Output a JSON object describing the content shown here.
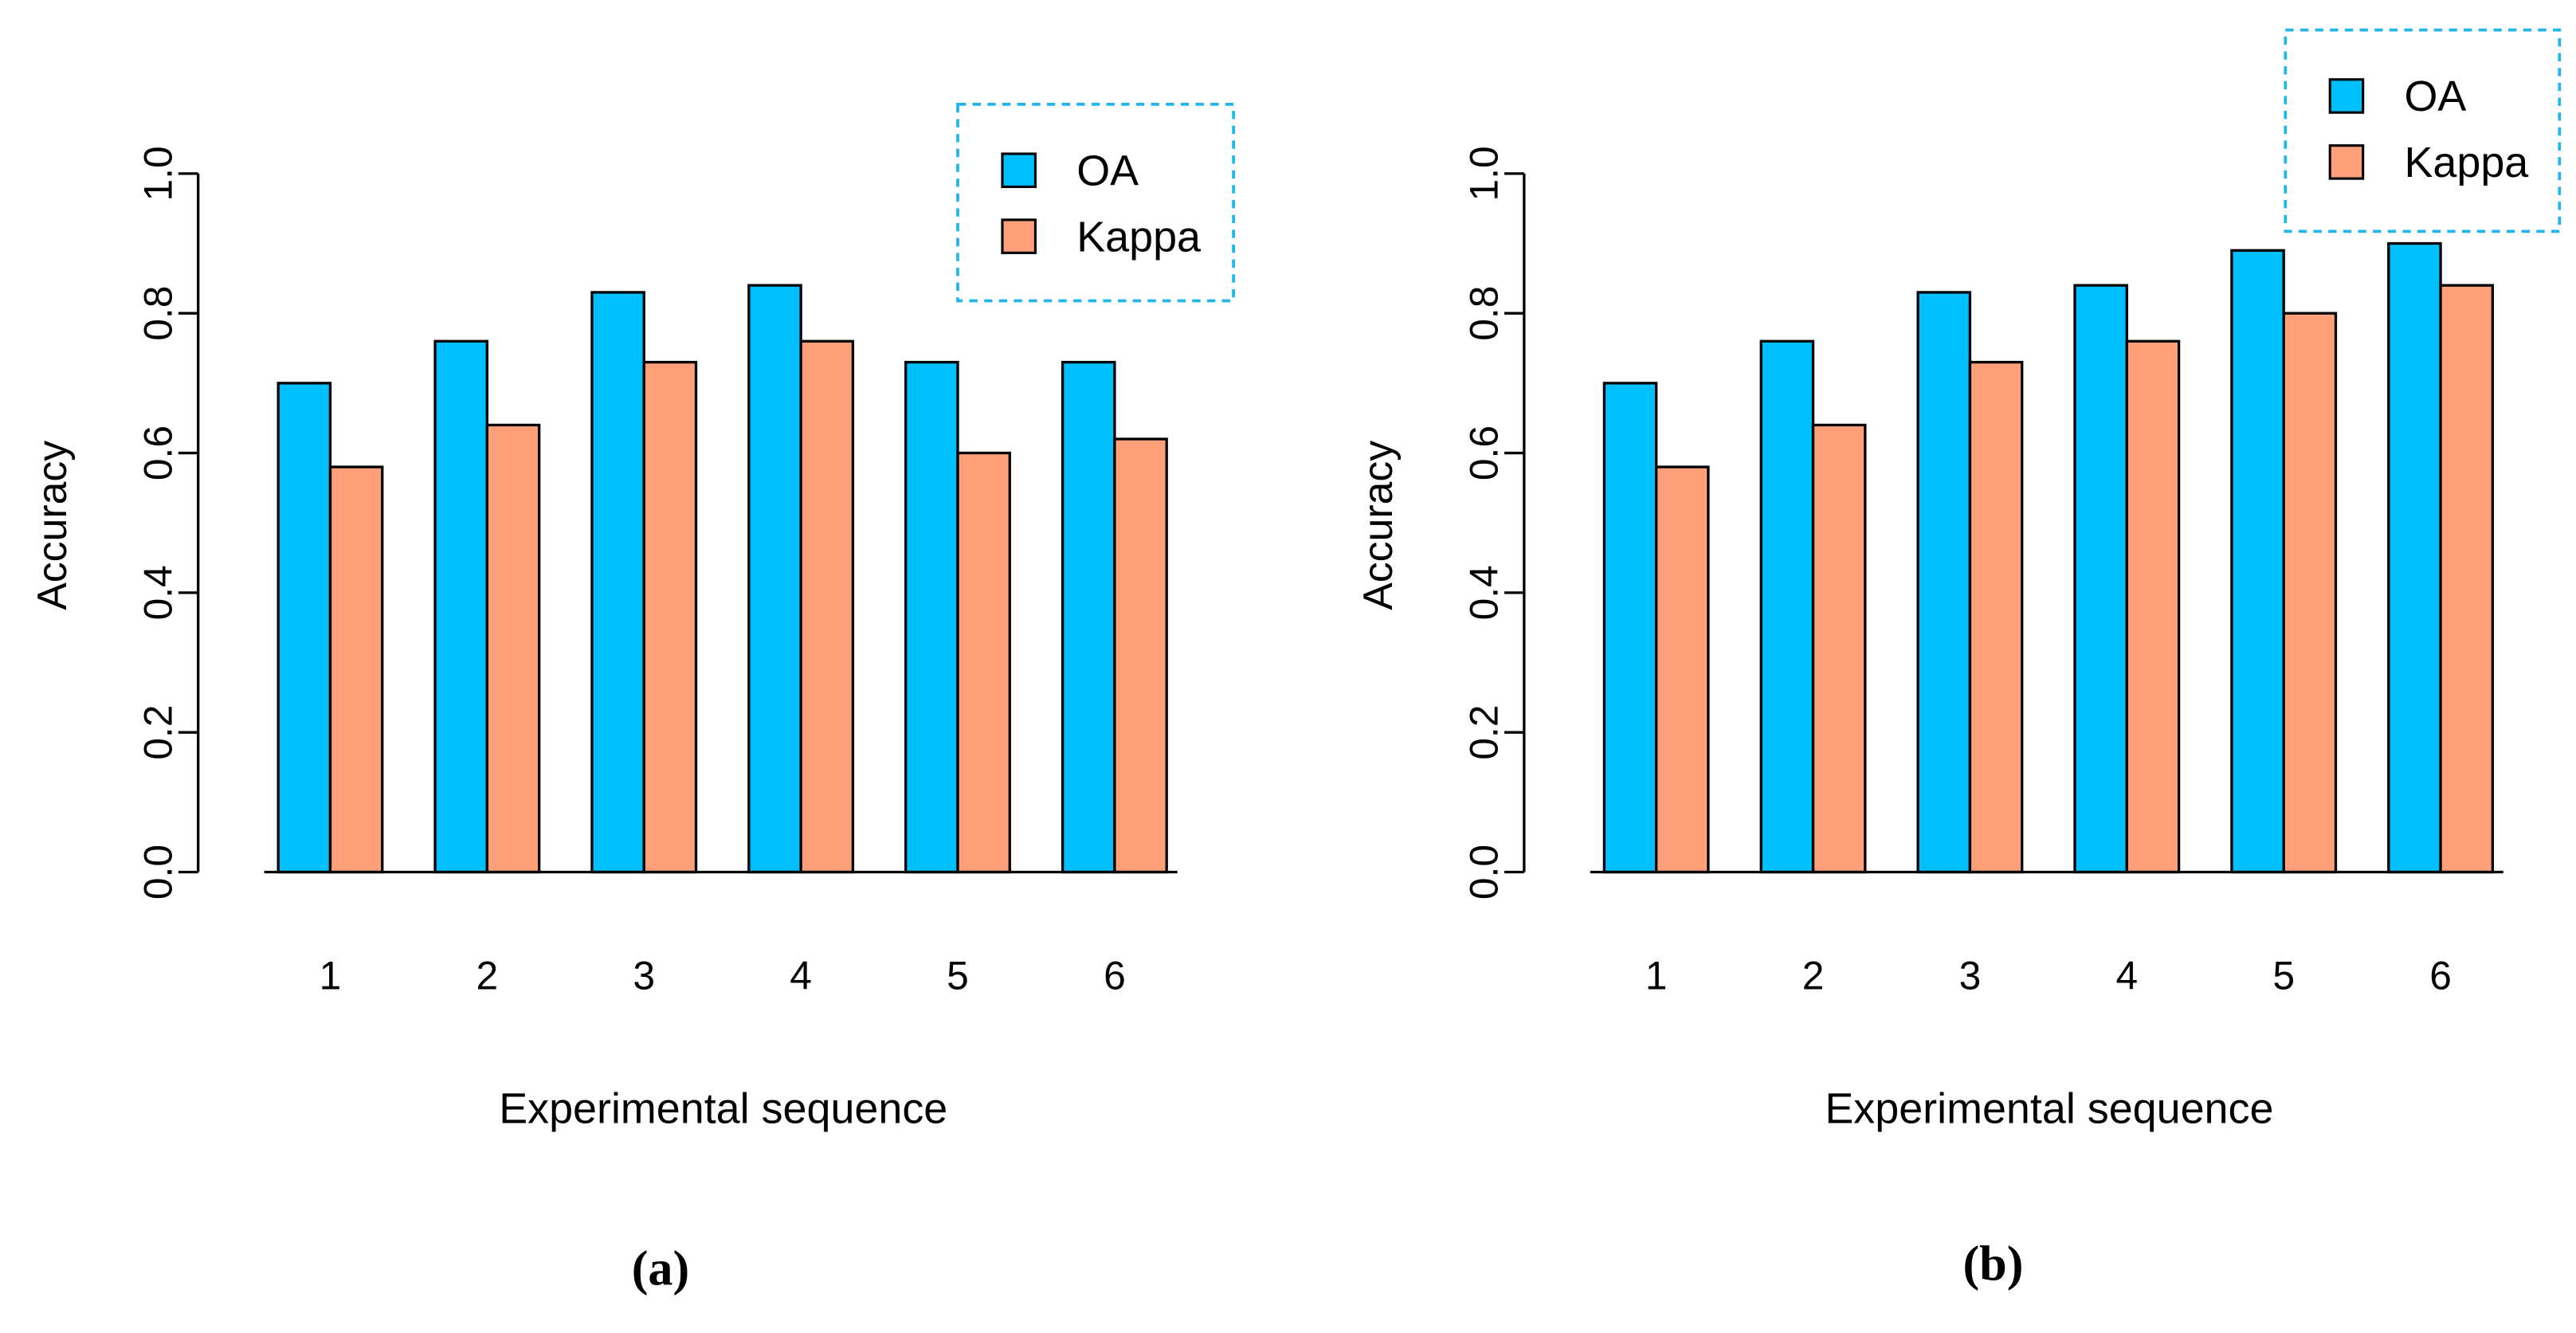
{
  "chart_data": [
    {
      "type": "bar",
      "panel_label": "(a)",
      "xlabel": "Experimental sequence",
      "ylabel": "Accuracy",
      "ylim": [
        0,
        1.0
      ],
      "yticks": [
        "0.0",
        "0.2",
        "0.4",
        "0.6",
        "0.8",
        "1.0"
      ],
      "categories": [
        "1",
        "2",
        "3",
        "4",
        "5",
        "6"
      ],
      "legend_position": "top-right",
      "series": [
        {
          "name": "OA",
          "color": "#00BFFF",
          "values": [
            0.7,
            0.76,
            0.83,
            0.84,
            0.73,
            0.73
          ]
        },
        {
          "name": "Kappa",
          "color": "#FFA07A",
          "values": [
            0.58,
            0.64,
            0.73,
            0.76,
            0.6,
            0.62
          ]
        }
      ]
    },
    {
      "type": "bar",
      "panel_label": "(b)",
      "xlabel": "Experimental sequence",
      "ylabel": "Accuracy",
      "ylim": [
        0,
        1.0
      ],
      "yticks": [
        "0.0",
        "0.2",
        "0.4",
        "0.6",
        "0.8",
        "1.0"
      ],
      "categories": [
        "1",
        "2",
        "3",
        "4",
        "5",
        "6"
      ],
      "legend_position": "top-right",
      "series": [
        {
          "name": "OA",
          "color": "#00BFFF",
          "values": [
            0.7,
            0.76,
            0.83,
            0.84,
            0.89,
            0.9
          ]
        },
        {
          "name": "Kappa",
          "color": "#FFA07A",
          "values": [
            0.58,
            0.64,
            0.73,
            0.76,
            0.8,
            0.84
          ]
        }
      ]
    }
  ],
  "legend_border_color": "#22B5EC"
}
